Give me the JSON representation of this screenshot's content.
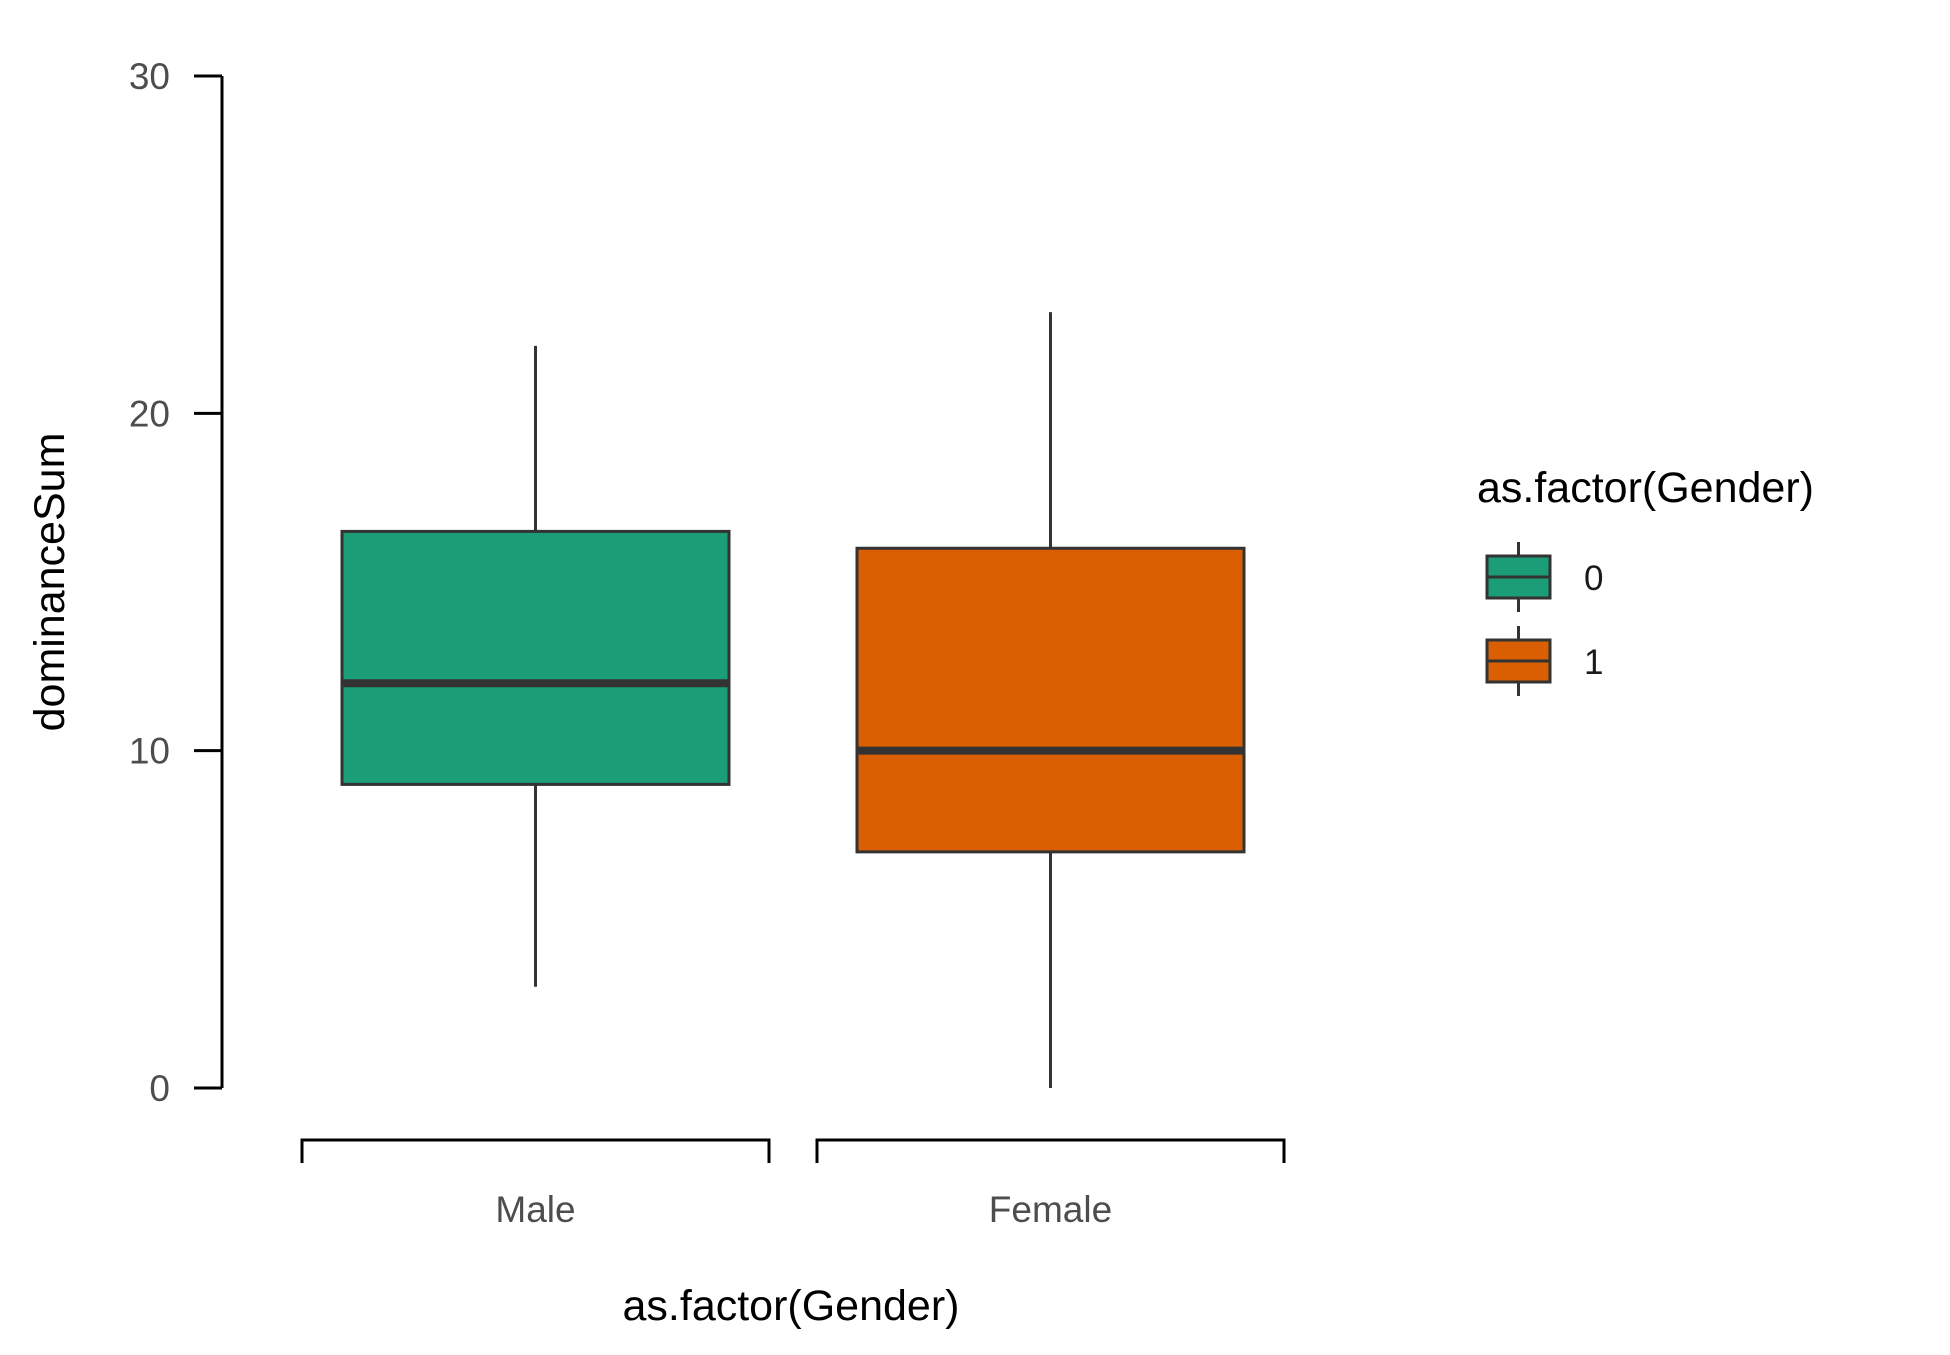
{
  "chart_data": {
    "type": "boxplot",
    "xlabel": "as.factor(Gender)",
    "ylabel": "dominanceSum",
    "ylim": [
      0,
      30
    ],
    "y_ticks": [
      0,
      10,
      20,
      30
    ],
    "categories": [
      "Male",
      "Female"
    ],
    "boxes": [
      {
        "category": "Male",
        "group": "0",
        "whisker_low": 3,
        "q1": 9,
        "median": 12,
        "q3": 16.5,
        "whisker_high": 22,
        "color": "#1b9e77"
      },
      {
        "category": "Female",
        "group": "1",
        "whisker_low": 0,
        "q1": 7,
        "median": 10,
        "q3": 16,
        "whisker_high": 23,
        "color": "#d95f02"
      }
    ],
    "legend": {
      "title": "as.factor(Gender)",
      "placement": "right",
      "items": [
        {
          "label": "0",
          "color": "#1b9e77"
        },
        {
          "label": "1",
          "color": "#d95f02"
        }
      ]
    },
    "grid": false
  }
}
